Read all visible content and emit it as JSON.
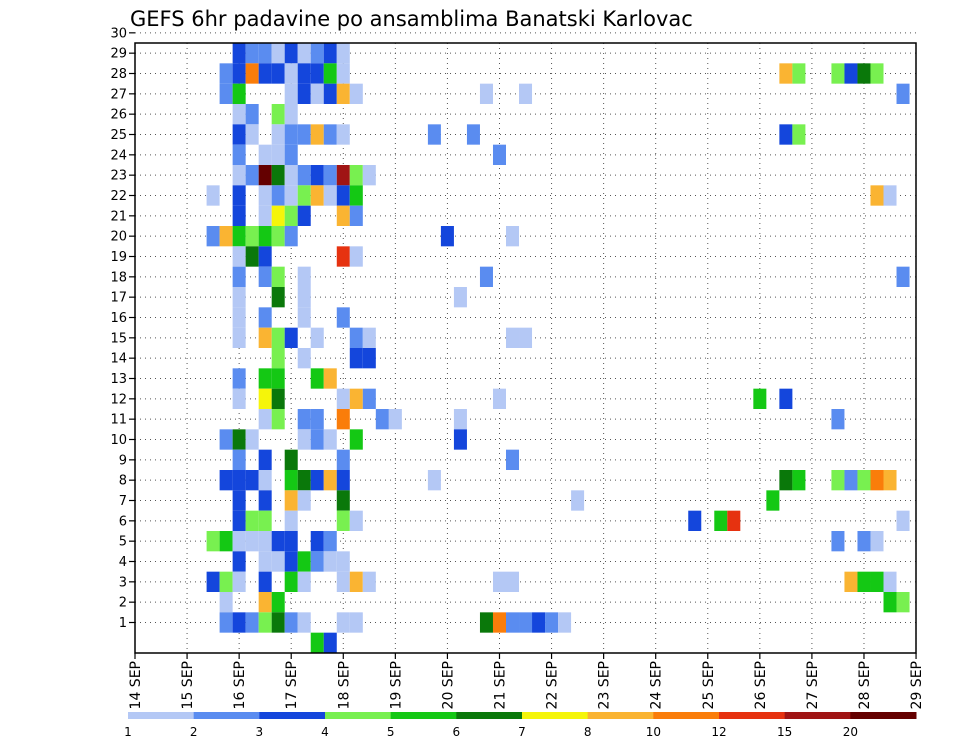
{
  "chart_data": {
    "type": "heatmap",
    "title": "GEFS 6hr padavine po ansamblima Banatski Karlovac",
    "xlabel": "",
    "ylabel": "",
    "x_tick_labels": [
      "14 SEP",
      "15 SEP",
      "16 SEP",
      "17 SEP",
      "18 SEP",
      "19 SEP",
      "20 SEP",
      "21 SEP",
      "22 SEP",
      "23 SEP",
      "24 SEP",
      "25 SEP",
      "26 SEP",
      "27 SEP",
      "28 SEP",
      "29 SEP"
    ],
    "x_step": "6 h",
    "x_range": [
      "14 SEP 00Z",
      "29 SEP 00Z"
    ],
    "members": [
      1,
      2,
      3,
      4,
      5,
      6,
      7,
      8,
      9,
      10,
      11,
      12,
      13,
      14,
      15,
      16,
      17,
      18,
      19,
      20,
      21,
      22,
      23,
      24,
      25,
      26,
      27,
      28,
      29,
      30
    ],
    "y_tick_labels": [
      "1",
      "2",
      "3",
      "4",
      "5",
      "6",
      "7",
      "8",
      "9",
      "10",
      "11",
      "12",
      "13",
      "14",
      "15",
      "16",
      "17",
      "18",
      "19",
      "20",
      "21",
      "22",
      "23",
      "24",
      "25",
      "26",
      "27",
      "28",
      "29",
      "30"
    ],
    "ylim": [
      0.5,
      30.5
    ],
    "grid": true,
    "legend": {
      "placement": "bottom",
      "labels": [
        "1",
        "2",
        "3",
        "4",
        "5",
        "6",
        "7",
        "8",
        "10",
        "12",
        "15",
        "20"
      ],
      "bins": [
        {
          "min": 1,
          "max": 2,
          "color": "#b4c8f5"
        },
        {
          "min": 2,
          "max": 3,
          "color": "#5a8cf0"
        },
        {
          "min": 3,
          "max": 4,
          "color": "#1446dc"
        },
        {
          "min": 4,
          "max": 5,
          "color": "#78f050"
        },
        {
          "min": 5,
          "max": 6,
          "color": "#14c814"
        },
        {
          "min": 6,
          "max": 7,
          "color": "#0a780a"
        },
        {
          "min": 7,
          "max": 8,
          "color": "#f5f50a"
        },
        {
          "min": 8,
          "max": 10,
          "color": "#fab432"
        },
        {
          "min": 10,
          "max": 12,
          "color": "#fa7d0a"
        },
        {
          "min": 12,
          "max": 15,
          "color": "#e63210"
        },
        {
          "min": 15,
          "max": 20,
          "color": "#a01414"
        },
        {
          "min": 20,
          "max": 30,
          "color": "#640000"
        }
      ]
    },
    "series": [
      {
        "member": 30,
        "cells": [
          [
            8,
            5
          ],
          [
            9,
            2
          ],
          [
            10,
            1
          ],
          [
            11,
            1
          ],
          [
            12,
            2
          ],
          [
            13,
            2
          ],
          [
            14,
            5
          ],
          [
            15,
            2
          ],
          [
            16,
            7
          ],
          [
            27,
            2
          ]
        ]
      },
      {
        "member": 29,
        "cells": [
          [
            8,
            3
          ],
          [
            9,
            2
          ],
          [
            10,
            2
          ],
          [
            11,
            1
          ],
          [
            12,
            3
          ],
          [
            13,
            1
          ],
          [
            14,
            2
          ],
          [
            15,
            3
          ],
          [
            16,
            1
          ]
        ]
      },
      {
        "member": 28,
        "cells": [
          [
            7,
            2
          ],
          [
            8,
            3
          ],
          [
            9,
            10
          ],
          [
            10,
            3
          ],
          [
            11,
            3
          ],
          [
            12,
            1
          ],
          [
            13,
            3
          ],
          [
            14,
            3
          ],
          [
            15,
            5
          ],
          [
            16,
            1
          ],
          [
            50,
            8
          ],
          [
            51,
            4
          ],
          [
            54,
            4
          ],
          [
            55,
            3
          ],
          [
            56,
            6
          ],
          [
            57,
            4
          ]
        ]
      },
      {
        "member": 27,
        "cells": [
          [
            7,
            2
          ],
          [
            8,
            5
          ],
          [
            12,
            1
          ],
          [
            13,
            3
          ],
          [
            14,
            1
          ],
          [
            15,
            3
          ],
          [
            16,
            9
          ],
          [
            17,
            1
          ],
          [
            27,
            1
          ],
          [
            30,
            1
          ],
          [
            59,
            2
          ]
        ]
      },
      {
        "member": 26,
        "cells": [
          [
            8,
            1
          ],
          [
            9,
            2
          ],
          [
            11,
            4
          ],
          [
            12,
            1
          ]
        ]
      },
      {
        "member": 25,
        "cells": [
          [
            8,
            3
          ],
          [
            9,
            1
          ],
          [
            11,
            1
          ],
          [
            12,
            2
          ],
          [
            13,
            2
          ],
          [
            14,
            8
          ],
          [
            15,
            2
          ],
          [
            16,
            1
          ],
          [
            23,
            2
          ],
          [
            26,
            2
          ],
          [
            50,
            3
          ],
          [
            51,
            4
          ]
        ]
      },
      {
        "member": 24,
        "cells": [
          [
            8,
            2
          ],
          [
            10,
            1
          ],
          [
            11,
            1
          ],
          [
            12,
            2
          ],
          [
            28,
            2
          ]
        ]
      },
      {
        "member": 23,
        "cells": [
          [
            8,
            1
          ],
          [
            9,
            2
          ],
          [
            10,
            20
          ],
          [
            11,
            6
          ],
          [
            12,
            1
          ],
          [
            13,
            2
          ],
          [
            14,
            3
          ],
          [
            15,
            2
          ],
          [
            16,
            15
          ],
          [
            17,
            4
          ],
          [
            18,
            1
          ]
        ]
      },
      {
        "member": 22,
        "cells": [
          [
            6,
            1
          ],
          [
            8,
            3
          ],
          [
            10,
            1
          ],
          [
            11,
            2
          ],
          [
            12,
            1
          ],
          [
            13,
            4
          ],
          [
            14,
            8
          ],
          [
            15,
            1
          ],
          [
            16,
            3
          ],
          [
            17,
            5
          ],
          [
            57,
            8
          ],
          [
            58,
            1
          ]
        ]
      },
      {
        "member": 21,
        "cells": [
          [
            8,
            3
          ],
          [
            10,
            1
          ],
          [
            11,
            7
          ],
          [
            12,
            4
          ],
          [
            13,
            3
          ],
          [
            16,
            8
          ],
          [
            17,
            2
          ]
        ]
      },
      {
        "member": 20,
        "cells": [
          [
            6,
            2
          ],
          [
            7,
            8
          ],
          [
            8,
            5
          ],
          [
            9,
            4
          ],
          [
            10,
            5
          ],
          [
            11,
            4
          ],
          [
            12,
            2
          ],
          [
            24,
            3
          ],
          [
            29,
            1
          ]
        ]
      },
      {
        "member": 19,
        "cells": [
          [
            8,
            1
          ],
          [
            9,
            6
          ],
          [
            10,
            3
          ],
          [
            16,
            12
          ],
          [
            17,
            1
          ]
        ]
      },
      {
        "member": 18,
        "cells": [
          [
            8,
            2
          ],
          [
            10,
            2
          ],
          [
            11,
            4
          ],
          [
            13,
            1
          ],
          [
            27,
            2
          ],
          [
            59,
            2
          ]
        ]
      },
      {
        "member": 17,
        "cells": [
          [
            8,
            1
          ],
          [
            11,
            6
          ],
          [
            13,
            1
          ],
          [
            25,
            1
          ]
        ]
      },
      {
        "member": 16,
        "cells": [
          [
            8,
            1
          ],
          [
            10,
            2
          ],
          [
            13,
            1
          ],
          [
            16,
            2
          ]
        ]
      },
      {
        "member": 15,
        "cells": [
          [
            8,
            1
          ],
          [
            10,
            8
          ],
          [
            11,
            4
          ],
          [
            12,
            3
          ],
          [
            14,
            1
          ],
          [
            17,
            2
          ],
          [
            18,
            1
          ],
          [
            29,
            1
          ],
          [
            30,
            1
          ]
        ]
      },
      {
        "member": 14,
        "cells": [
          [
            11,
            4
          ],
          [
            13,
            1
          ],
          [
            17,
            3
          ],
          [
            18,
            3
          ]
        ]
      },
      {
        "member": 13,
        "cells": [
          [
            8,
            2
          ],
          [
            10,
            5
          ],
          [
            11,
            5
          ],
          [
            14,
            5
          ],
          [
            15,
            8
          ]
        ]
      },
      {
        "member": 12,
        "cells": [
          [
            8,
            1
          ],
          [
            10,
            7
          ],
          [
            11,
            6
          ],
          [
            16,
            1
          ],
          [
            17,
            8
          ],
          [
            18,
            2
          ],
          [
            28,
            1
          ],
          [
            48,
            5
          ],
          [
            50,
            3
          ]
        ]
      },
      {
        "member": 11,
        "cells": [
          [
            10,
            1
          ],
          [
            11,
            4
          ],
          [
            13,
            2
          ],
          [
            14,
            2
          ],
          [
            16,
            10
          ],
          [
            19,
            2
          ],
          [
            20,
            1
          ],
          [
            25,
            1
          ],
          [
            54,
            2
          ]
        ]
      },
      {
        "member": 10,
        "cells": [
          [
            7,
            2
          ],
          [
            8,
            6
          ],
          [
            9,
            1
          ],
          [
            13,
            1
          ],
          [
            14,
            2
          ],
          [
            15,
            1
          ],
          [
            17,
            5
          ],
          [
            25,
            3
          ]
        ]
      },
      {
        "member": 9,
        "cells": [
          [
            8,
            2
          ],
          [
            10,
            3
          ],
          [
            12,
            6
          ],
          [
            16,
            2
          ],
          [
            29,
            2
          ]
        ]
      },
      {
        "member": 8,
        "cells": [
          [
            7,
            3
          ],
          [
            8,
            3
          ],
          [
            9,
            3
          ],
          [
            10,
            1
          ],
          [
            12,
            5
          ],
          [
            13,
            6
          ],
          [
            14,
            3
          ],
          [
            15,
            8
          ],
          [
            16,
            3
          ],
          [
            23,
            1
          ],
          [
            50,
            6
          ],
          [
            51,
            5
          ],
          [
            54,
            4
          ],
          [
            55,
            2
          ],
          [
            56,
            4
          ],
          [
            57,
            10
          ],
          [
            58,
            8
          ]
        ]
      },
      {
        "member": 7,
        "cells": [
          [
            8,
            3
          ],
          [
            10,
            3
          ],
          [
            12,
            8
          ],
          [
            13,
            1
          ],
          [
            16,
            6
          ],
          [
            34,
            1
          ],
          [
            49,
            5
          ]
        ]
      },
      {
        "member": 6,
        "cells": [
          [
            8,
            3
          ],
          [
            9,
            4
          ],
          [
            10,
            4
          ],
          [
            12,
            1
          ],
          [
            16,
            4
          ],
          [
            17,
            1
          ],
          [
            43,
            3
          ],
          [
            45,
            5
          ],
          [
            46,
            12
          ],
          [
            59,
            1
          ]
        ]
      },
      {
        "member": 5,
        "cells": [
          [
            6,
            4
          ],
          [
            7,
            5
          ],
          [
            8,
            1
          ],
          [
            9,
            1
          ],
          [
            10,
            1
          ],
          [
            11,
            3
          ],
          [
            12,
            3
          ],
          [
            14,
            3
          ],
          [
            15,
            2
          ],
          [
            54,
            2
          ],
          [
            56,
            2
          ],
          [
            57,
            1
          ]
        ]
      },
      {
        "member": 4,
        "cells": [
          [
            8,
            3
          ],
          [
            10,
            1
          ],
          [
            11,
            1
          ],
          [
            12,
            3
          ],
          [
            13,
            5
          ],
          [
            14,
            2
          ],
          [
            15,
            1
          ],
          [
            16,
            1
          ]
        ]
      },
      {
        "member": 3,
        "cells": [
          [
            6,
            3
          ],
          [
            7,
            4
          ],
          [
            8,
            1
          ],
          [
            10,
            3
          ],
          [
            12,
            5
          ],
          [
            13,
            1
          ],
          [
            16,
            1
          ],
          [
            17,
            8
          ],
          [
            18,
            1
          ],
          [
            28,
            1
          ],
          [
            29,
            1
          ],
          [
            55,
            8
          ],
          [
            56,
            5
          ],
          [
            57,
            5
          ],
          [
            58,
            1
          ]
        ]
      },
      {
        "member": 2,
        "cells": [
          [
            7,
            1
          ],
          [
            10,
            8
          ],
          [
            11,
            5
          ],
          [
            58,
            5
          ],
          [
            59,
            4
          ]
        ]
      },
      {
        "member": 1,
        "cells": [
          [
            7,
            2
          ],
          [
            8,
            3
          ],
          [
            9,
            2
          ],
          [
            10,
            4
          ],
          [
            11,
            6
          ],
          [
            12,
            2
          ],
          [
            13,
            1
          ],
          [
            16,
            1
          ],
          [
            17,
            1
          ],
          [
            27,
            6
          ],
          [
            28,
            10
          ],
          [
            29,
            2
          ],
          [
            30,
            2
          ],
          [
            31,
            3
          ],
          [
            32,
            2
          ],
          [
            33,
            1
          ]
        ]
      },
      {
        "member": 0,
        "cells": [
          [
            14,
            5
          ],
          [
            15,
            3
          ]
        ]
      }
    ]
  }
}
